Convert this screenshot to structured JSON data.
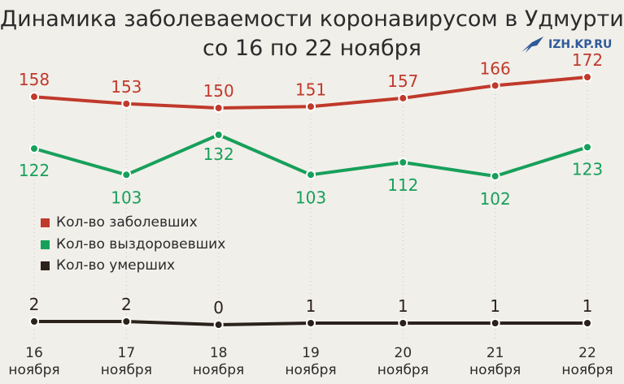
{
  "header": {
    "title_line1": "Динамика заболеваемости коронавирусом в Удмуртии",
    "title_line2": "со 16 по 22 ноября",
    "logo_text": "IZH.KP.RU"
  },
  "chart_data": {
    "type": "line",
    "categories": [
      "16\nноября",
      "17\nноября",
      "18\nноября",
      "19\nноября",
      "20\nноября",
      "21\nноября",
      "22\nноября"
    ],
    "series": [
      {
        "name": "Кол-во заболевших",
        "color": "#c0392b",
        "values": [
          158,
          153,
          150,
          151,
          157,
          166,
          172
        ]
      },
      {
        "name": "Кол-во выздоровевших",
        "color": "#17a05a",
        "values": [
          122,
          103,
          132,
          103,
          112,
          102,
          123
        ]
      },
      {
        "name": "Кол-во умерших",
        "color": "#2b221c",
        "values": [
          2,
          2,
          0,
          1,
          1,
          1,
          1
        ]
      }
    ],
    "legend_position": "center-left",
    "grid": "vertical"
  }
}
